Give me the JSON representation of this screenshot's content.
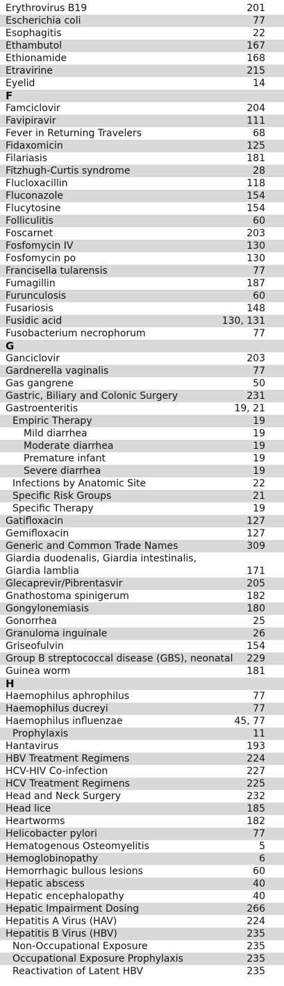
{
  "entries": [
    {
      "term": "Erythrovirus B19",
      "page": "201",
      "shade": false,
      "level": 0
    },
    {
      "term": "Escherichia coli",
      "page": "77",
      "shade": true,
      "level": 0
    },
    {
      "term": "Esophagitis",
      "page": "22",
      "shade": false,
      "level": 0
    },
    {
      "term": "Ethambutol",
      "page": "167",
      "shade": true,
      "level": 0
    },
    {
      "term": "Ethionamide",
      "page": "168",
      "shade": false,
      "level": 0
    },
    {
      "term": "Etravirine",
      "page": "215",
      "shade": true,
      "level": 0
    },
    {
      "term": "Eyelid",
      "page": "14",
      "shade": false,
      "level": 0
    },
    {
      "term": "F",
      "page": "",
      "shade": true,
      "level": 0,
      "letter": true
    },
    {
      "term": "Famciclovir",
      "page": "204",
      "shade": false,
      "level": 0
    },
    {
      "term": "Favipiravir",
      "page": "111",
      "shade": true,
      "level": 0
    },
    {
      "term": "Fever in Returning Travelers",
      "page": "68",
      "shade": false,
      "level": 0
    },
    {
      "term": "Fidaxomicin",
      "page": "125",
      "shade": true,
      "level": 0
    },
    {
      "term": "Filariasis",
      "page": "181",
      "shade": false,
      "level": 0
    },
    {
      "term": "Fitzhugh-Curtis syndrome",
      "page": "28",
      "shade": true,
      "level": 0
    },
    {
      "term": "Flucloxacillin",
      "page": "118",
      "shade": false,
      "level": 0
    },
    {
      "term": "Fluconazole",
      "page": "154",
      "shade": true,
      "level": 0
    },
    {
      "term": "Flucytosine",
      "page": "154",
      "shade": false,
      "level": 0
    },
    {
      "term": "Folliculitis",
      "page": "60",
      "shade": true,
      "level": 0
    },
    {
      "term": "Foscarnet",
      "page": "203",
      "shade": false,
      "level": 0
    },
    {
      "term": "Fosfomycin IV",
      "page": "130",
      "shade": true,
      "level": 0
    },
    {
      "term": "Fosfomycin po",
      "page": "130",
      "shade": false,
      "level": 0
    },
    {
      "term": "Francisella tularensis",
      "page": "77",
      "shade": true,
      "level": 0
    },
    {
      "term": "Fumagillin",
      "page": "187",
      "shade": false,
      "level": 0
    },
    {
      "term": "Furunculosis",
      "page": "60",
      "shade": true,
      "level": 0
    },
    {
      "term": "Fusariosis",
      "page": "148",
      "shade": false,
      "level": 0
    },
    {
      "term": "Fusidic acid",
      "page": "130, 131",
      "shade": true,
      "level": 0
    },
    {
      "term": "Fusobacterium necrophorum",
      "page": "77",
      "shade": false,
      "level": 0
    },
    {
      "term": "G",
      "page": "",
      "shade": true,
      "level": 0,
      "letter": true
    },
    {
      "term": "Ganciclovir",
      "page": "203",
      "shade": false,
      "level": 0
    },
    {
      "term": "Gardnerella vaginalis",
      "page": "77",
      "shade": true,
      "level": 0
    },
    {
      "term": "Gas gangrene",
      "page": "50",
      "shade": false,
      "level": 0
    },
    {
      "term": "Gastric, Biliary and Colonic Surgery",
      "page": "231",
      "shade": true,
      "level": 0
    },
    {
      "term": "Gastroenteritis",
      "page": "19, 21",
      "shade": false,
      "level": 0
    },
    {
      "term": "Empiric Therapy",
      "page": "19",
      "shade": true,
      "level": 1
    },
    {
      "term": "Mild diarrhea",
      "page": "19",
      "shade": false,
      "level": 2
    },
    {
      "term": "Moderate diarrhea",
      "page": "19",
      "shade": true,
      "level": 2
    },
    {
      "term": "Premature infant",
      "page": "19",
      "shade": false,
      "level": 2
    },
    {
      "term": "Severe diarrhea",
      "page": "19",
      "shade": true,
      "level": 2
    },
    {
      "term": "Infections by Anatomic Site",
      "page": "22",
      "shade": false,
      "level": 1
    },
    {
      "term": "Specific Risk Groups",
      "page": "21",
      "shade": true,
      "level": 1
    },
    {
      "term": "Specific Therapy",
      "page": "19",
      "shade": false,
      "level": 1
    },
    {
      "term": "Gatifloxacin",
      "page": "127",
      "shade": true,
      "level": 0
    },
    {
      "term": "Gemifloxacin",
      "page": "127",
      "shade": false,
      "level": 0
    },
    {
      "term": "Generic and Common Trade Names",
      "page": "309",
      "shade": true,
      "level": 0
    },
    {
      "term": "Giardia duodenalis, Giardia intestinalis,\n  Giardia lamblia",
      "page": "171",
      "shade": false,
      "level": 0
    },
    {
      "term": "Glecaprevir/Pibrentasvir",
      "page": "205",
      "shade": true,
      "level": 0
    },
    {
      "term": "Gnathostoma spinigerum",
      "page": "182",
      "shade": false,
      "level": 0
    },
    {
      "term": "Gongylonemiasis",
      "page": "180",
      "shade": true,
      "level": 0
    },
    {
      "term": "Gonorrhea",
      "page": "25",
      "shade": false,
      "level": 0
    },
    {
      "term": "Granuloma inguinale",
      "page": "26",
      "shade": true,
      "level": 0
    },
    {
      "term": "Griseofulvin",
      "page": "154",
      "shade": false,
      "level": 0
    },
    {
      "term": "Group B streptococcal disease (GBS), neonatal",
      "page": "229",
      "shade": true,
      "level": 0
    },
    {
      "term": "Guinea worm",
      "page": "181",
      "shade": false,
      "level": 0
    },
    {
      "term": "H",
      "page": "",
      "shade": true,
      "level": 0,
      "letter": true
    },
    {
      "term": "Haemophilus aphrophilus",
      "page": "77",
      "shade": false,
      "level": 0
    },
    {
      "term": "Haemophilus ducreyi",
      "page": "77",
      "shade": true,
      "level": 0
    },
    {
      "term": "Haemophilus influenzae",
      "page": "45, 77",
      "shade": false,
      "level": 0
    },
    {
      "term": "Prophylaxis",
      "page": "11",
      "shade": true,
      "level": 1
    },
    {
      "term": "Hantavirus",
      "page": "193",
      "shade": false,
      "level": 0
    },
    {
      "term": "HBV Treatment Regimens",
      "page": "224",
      "shade": true,
      "level": 0
    },
    {
      "term": "HCV-HIV Co-infection",
      "page": "227",
      "shade": false,
      "level": 0
    },
    {
      "term": "HCV Treatment Regimens",
      "page": "225",
      "shade": true,
      "level": 0
    },
    {
      "term": "Head and Neck Surgery",
      "page": "232",
      "shade": false,
      "level": 0
    },
    {
      "term": "Head lice",
      "page": "185",
      "shade": true,
      "level": 0
    },
    {
      "term": "Heartworms",
      "page": "182",
      "shade": false,
      "level": 0
    },
    {
      "term": "Helicobacter pylori",
      "page": "77",
      "shade": true,
      "level": 0
    },
    {
      "term": "Hematogenous Osteomyelitis",
      "page": "5",
      "shade": false,
      "level": 0
    },
    {
      "term": "Hemoglobinopathy",
      "page": "6",
      "shade": true,
      "level": 0
    },
    {
      "term": "Hemorrhagic bullous lesions",
      "page": "60",
      "shade": false,
      "level": 0
    },
    {
      "term": "Hepatic abscess",
      "page": "40",
      "shade": true,
      "level": 0
    },
    {
      "term": "Hepatic encephalopathy",
      "page": "40",
      "shade": false,
      "level": 0
    },
    {
      "term": "Hepatic Impairment Dosing",
      "page": "266",
      "shade": true,
      "level": 0
    },
    {
      "term": "Hepatitis A Virus (HAV)",
      "page": "224",
      "shade": false,
      "level": 0
    },
    {
      "term": "Hepatitis B Virus (HBV)",
      "page": "235",
      "shade": true,
      "level": 0
    },
    {
      "term": "Non-Occupational Exposure",
      "page": "235",
      "shade": false,
      "level": 1
    },
    {
      "term": "Occupational Exposure Prophylaxis",
      "page": "235",
      "shade": true,
      "level": 1
    },
    {
      "term": "Reactivation of Latent HBV",
      "page": "235",
      "shade": false,
      "level": 1
    }
  ]
}
